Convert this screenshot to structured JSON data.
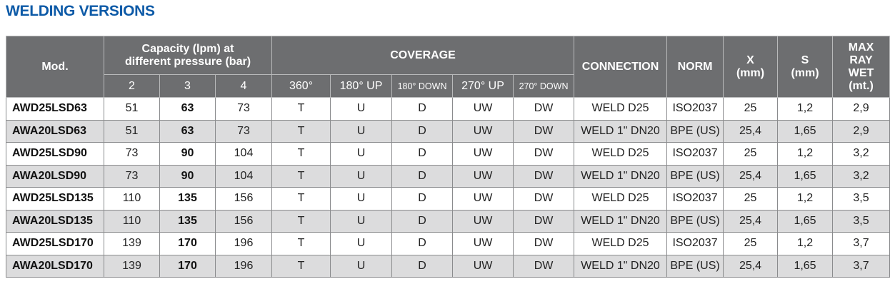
{
  "title": "WELDING VERSIONS",
  "colors": {
    "title": "#0d5aa7",
    "header_bg": "#6d6e70",
    "alt_row": "#dcdcdd"
  },
  "header": {
    "mod": "Mod.",
    "capacity": "Capacity (lpm) at different pressure (bar)",
    "pressures": [
      "2",
      "3",
      "4"
    ],
    "coverage": "COVERAGE",
    "coverage_cols": [
      "360°",
      "180° UP",
      "180° DOWN",
      "270° UP",
      "270° DOWN"
    ],
    "connection": "CONNECTION",
    "norm": "NORM",
    "x": "X (mm)",
    "s": "S (mm)",
    "max": "MAX RAY WET (mt.)"
  },
  "rows": [
    [
      "AWD25LSD63",
      "51",
      "63",
      "73",
      "T",
      "U",
      "D",
      "UW",
      "DW",
      "WELD D25",
      "ISO2037",
      "25",
      "1,2",
      "2,9"
    ],
    [
      "AWA20LSD63",
      "51",
      "63",
      "73",
      "T",
      "U",
      "D",
      "UW",
      "DW",
      "WELD 1\" DN20",
      "BPE (US)",
      "25,4",
      "1,65",
      "2,9"
    ],
    [
      "AWD25LSD90",
      "73",
      "90",
      "104",
      "T",
      "U",
      "D",
      "UW",
      "DW",
      "WELD D25",
      "ISO2037",
      "25",
      "1,2",
      "3,2"
    ],
    [
      "AWA20LSD90",
      "73",
      "90",
      "104",
      "T",
      "U",
      "D",
      "UW",
      "DW",
      "WELD 1\" DN20",
      "BPE (US)",
      "25,4",
      "1,65",
      "3,2"
    ],
    [
      "AWD25LSD135",
      "110",
      "135",
      "156",
      "T",
      "U",
      "D",
      "UW",
      "DW",
      "WELD D25",
      "ISO2037",
      "25",
      "1,2",
      "3,5"
    ],
    [
      "AWA20LSD135",
      "110",
      "135",
      "156",
      "T",
      "U",
      "D",
      "UW",
      "DW",
      "WELD 1\" DN20",
      "BPE (US)",
      "25,4",
      "1,65",
      "3,5"
    ],
    [
      "AWD25LSD170",
      "139",
      "170",
      "196",
      "T",
      "U",
      "D",
      "UW",
      "DW",
      "WELD D25",
      "ISO2037",
      "25",
      "1,2",
      "3,7"
    ],
    [
      "AWA20LSD170",
      "139",
      "170",
      "196",
      "T",
      "U",
      "D",
      "UW",
      "DW",
      "WELD 1\" DN20",
      "BPE (US)",
      "25,4",
      "1,65",
      "3,7"
    ]
  ]
}
